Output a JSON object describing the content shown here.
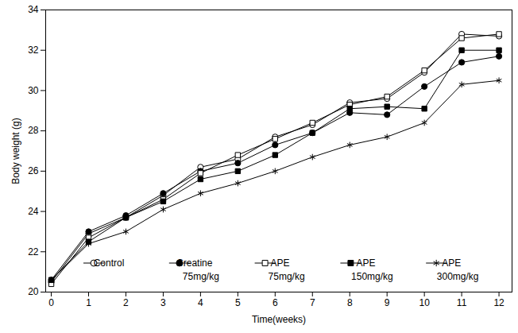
{
  "chart_data": {
    "type": "line",
    "x_label": "Time(weeks)",
    "y_label": "Body weight (g)",
    "x": [
      0,
      1,
      2,
      3,
      4,
      5,
      6,
      7,
      8,
      9,
      10,
      11,
      12
    ],
    "xlim": [
      -0.15,
      12.35
    ],
    "xticks": [
      0,
      1,
      2,
      3,
      4,
      5,
      6,
      7,
      8,
      9,
      10,
      11,
      12
    ],
    "ylim": [
      20,
      34
    ],
    "yticks": [
      20,
      22,
      24,
      26,
      28,
      30,
      32,
      34
    ],
    "grid": false,
    "legend": "bottom",
    "series": [
      {
        "name": "Control",
        "color": "#000000",
        "marker": "circle-open",
        "values": [
          20.5,
          22.9,
          23.7,
          24.8,
          26.2,
          26.6,
          27.7,
          28.3,
          29.4,
          29.6,
          30.9,
          32.8,
          32.7
        ]
      },
      {
        "name": "Creatine\n75mg/kg",
        "color": "#000000",
        "marker": "circle",
        "values": [
          20.6,
          23.0,
          23.8,
          24.9,
          26.0,
          26.4,
          27.3,
          27.9,
          28.9,
          28.8,
          30.2,
          31.4,
          31.7
        ]
      },
      {
        "name": "APE\n75mg/kg",
        "color": "#000000",
        "marker": "square-open",
        "values": [
          20.4,
          22.7,
          23.7,
          24.6,
          25.9,
          26.8,
          27.6,
          28.4,
          29.3,
          29.7,
          31.0,
          32.6,
          32.8
        ]
      },
      {
        "name": "APE\n150mg/kg",
        "color": "#000000",
        "marker": "square",
        "values": [
          20.6,
          22.5,
          23.7,
          24.5,
          25.6,
          26.0,
          26.8,
          27.9,
          29.1,
          29.2,
          29.1,
          32.0,
          32.0
        ]
      },
      {
        "name": "APE\n300mg/kg",
        "color": "#000000",
        "marker": "asterisk",
        "values": [
          20.6,
          22.4,
          23.0,
          24.1,
          24.9,
          25.4,
          26.0,
          26.7,
          27.3,
          27.7,
          28.4,
          30.3,
          30.5
        ]
      }
    ]
  }
}
